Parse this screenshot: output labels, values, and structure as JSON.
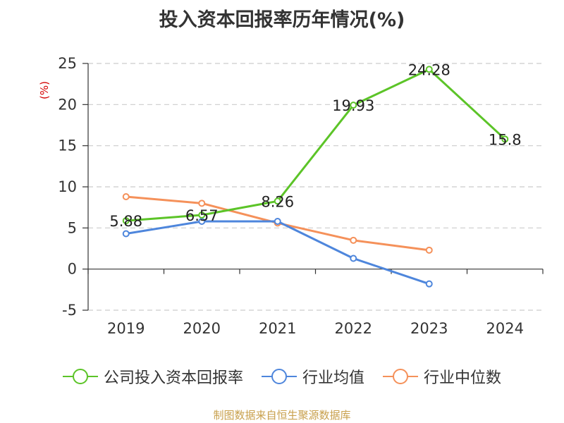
{
  "title": "投入资本回报率历年情况(%)",
  "footer": "制图数据来自恒生聚源数据库",
  "chart_data": {
    "type": "line",
    "title": "投入资本回报率历年情况(%)",
    "ylabel": "(%)",
    "categories": [
      "2019",
      "2020",
      "2021",
      "2022",
      "2023",
      "2024"
    ],
    "ylim": [
      -5,
      25
    ],
    "yticks": [
      -5,
      0,
      5,
      10,
      15,
      20,
      25
    ],
    "grid": true,
    "legend_position": "bottom",
    "series": [
      {
        "name": "公司投入资本回报率",
        "color": "#5cc428",
        "values": [
          5.88,
          6.57,
          8.26,
          19.93,
          24.28,
          15.8
        ],
        "labels": [
          "5.88",
          "6.57",
          "8.26",
          "19.93",
          "24.28",
          "15.8"
        ]
      },
      {
        "name": "行业均值",
        "color": "#4e86dc",
        "values": [
          4.3,
          5.8,
          5.8,
          1.3,
          -1.8,
          null
        ]
      },
      {
        "name": "行业中位数",
        "color": "#f5915a",
        "values": [
          8.8,
          8.0,
          5.6,
          3.5,
          2.3,
          null
        ]
      }
    ]
  }
}
